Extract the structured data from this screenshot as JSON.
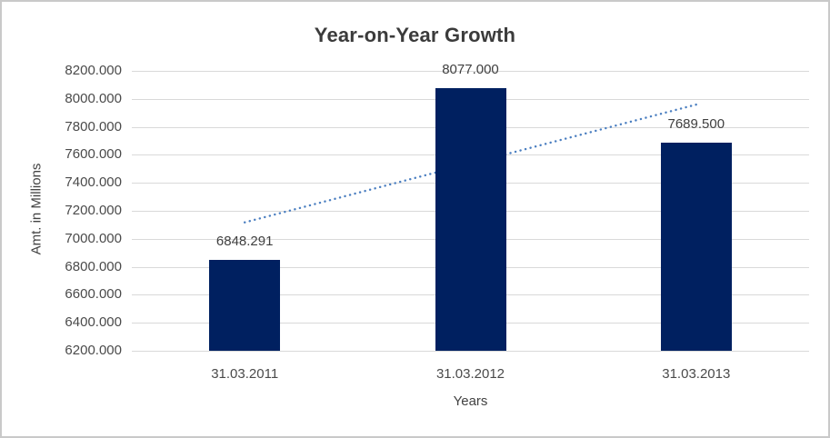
{
  "chart_data": {
    "type": "bar",
    "title": "Year-on-Year Growth",
    "xlabel": "Years",
    "ylabel": "Amt. in Millions",
    "categories": [
      "31.03.2011",
      "31.03.2012",
      "31.03.2013"
    ],
    "values": [
      6848.291,
      8077.0,
      7689.5
    ],
    "data_labels": [
      "6848.291",
      "8077.000",
      "7689.500"
    ],
    "ylim": [
      6200,
      8200
    ],
    "ytick_step": 200,
    "ytick_labels": [
      "8200.000",
      "8000.000",
      "7800.000",
      "7600.000",
      "7400.000",
      "7200.000",
      "7000.000",
      "6800.000",
      "6600.000",
      "6400.000",
      "6200.000"
    ],
    "grid": true,
    "legend_position": "none",
    "trendline": {
      "type": "linear-dotted",
      "start_value": 7117.7,
      "end_value": 7958.9
    },
    "colors": {
      "bar": "#002060",
      "trendline": "#4a7ec0",
      "gridline": "#d9d9d9",
      "title_text": "#3b3b3b",
      "axis_text": "#4a4a4a",
      "label_text": "#404040",
      "frame_border": "#c9c9c9",
      "background": "#ffffff"
    }
  }
}
